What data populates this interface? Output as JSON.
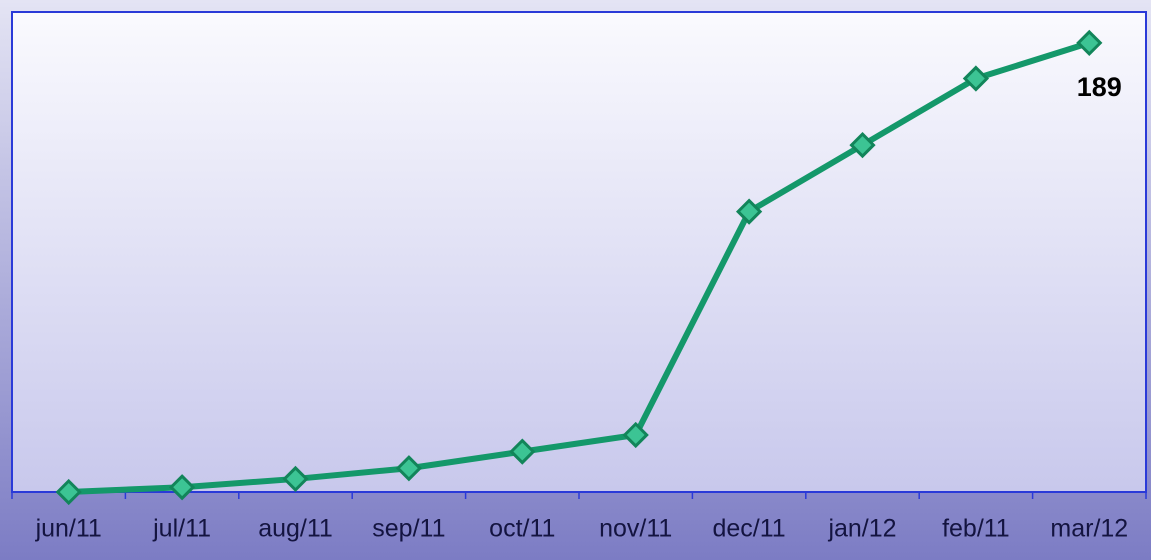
{
  "chart_data": {
    "type": "line",
    "categories": [
      "jun/11",
      "jul/11",
      "aug/11",
      "sep/11",
      "oct/11",
      "nov/11",
      "dec/11",
      "jan/12",
      "feb/11",
      "mar/12"
    ],
    "series": [
      {
        "color": "#14986a",
        "values": [
          0,
          2,
          5.5,
          10,
          17,
          24,
          118,
          146,
          174,
          189
        ]
      }
    ],
    "value_labels": [
      null,
      null,
      null,
      null,
      null,
      null,
      null,
      null,
      null,
      "189"
    ],
    "ylim": [
      0,
      202
    ]
  }
}
